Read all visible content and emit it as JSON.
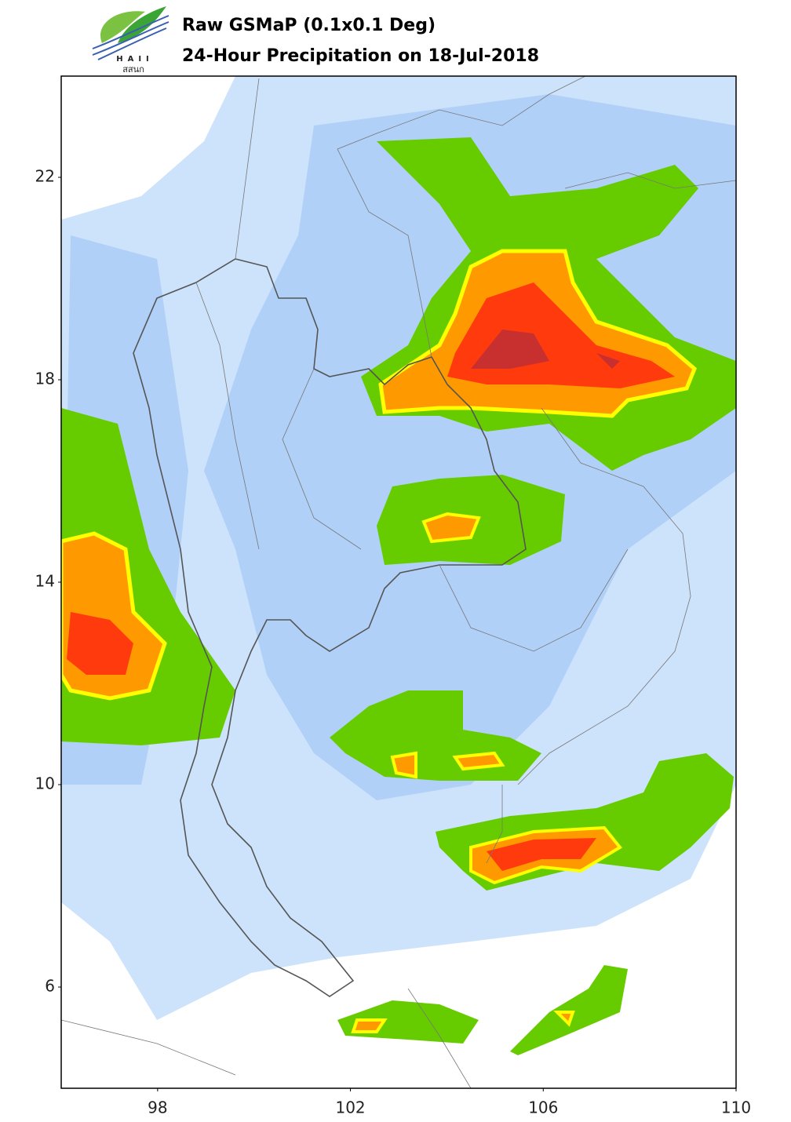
{
  "header": {
    "title": "Raw GSMaP (0.1x0.1 Deg)",
    "subtitle": "24-Hour Precipitation on 18-Jul-2018",
    "logo_text": "HAII",
    "logo_text_thai": "สสนก"
  },
  "map": {
    "xlim": [
      96,
      110
    ],
    "ylim": [
      4,
      24
    ],
    "xticks": [
      98,
      102,
      106,
      110
    ],
    "yticks": [
      22,
      18,
      14,
      10,
      6
    ]
  }
}
